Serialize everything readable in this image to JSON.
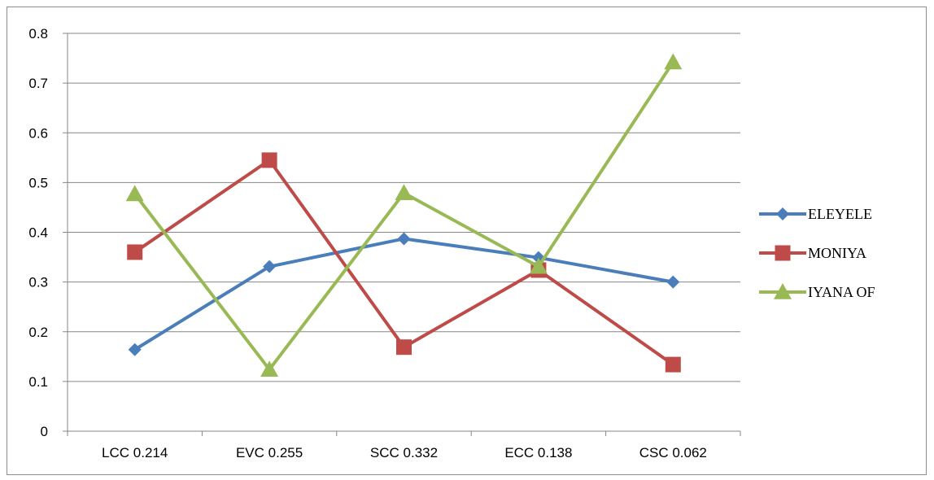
{
  "chart_data": {
    "type": "line",
    "categories": [
      "LCC 0.214",
      "EVC 0.255",
      "SCC 0.332",
      "ECC 0.138",
      "CSC 0.062"
    ],
    "ylim": [
      0,
      0.8
    ],
    "yticks": [
      "0",
      "0.1",
      "0.2",
      "0.3",
      "0.4",
      "0.5",
      "0.6",
      "0.7",
      "0.8"
    ],
    "grid": true,
    "legend_position": "right",
    "series": [
      {
        "name": "ELEYELE",
        "color": "#4a7ebb",
        "marker": "diamond",
        "values": [
          0.164,
          0.331,
          0.387,
          0.349,
          0.3
        ]
      },
      {
        "name": "MONIYA",
        "color": "#be4b48",
        "marker": "square",
        "values": [
          0.36,
          0.545,
          0.169,
          0.324,
          0.134
        ]
      },
      {
        "name": "IYANA OF",
        "color": "#98b954",
        "marker": "triangle",
        "values": [
          0.477,
          0.124,
          0.479,
          0.331,
          0.742
        ]
      }
    ]
  }
}
